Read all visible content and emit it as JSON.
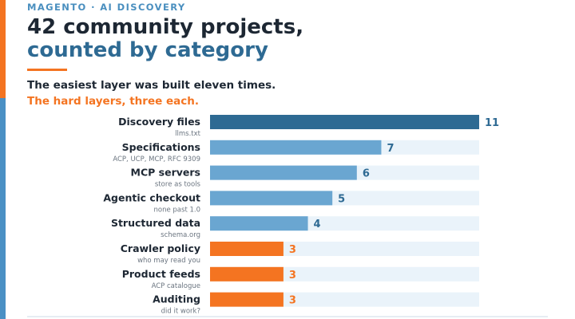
{
  "header": {
    "kicker": "MAGENTO · AI DISCOVERY",
    "title_line1": "42 community projects,",
    "title_line2": "counted by category",
    "subtitle_line1": "The easiest layer was built eleven times.",
    "subtitle_line2": "The hard layers, three each."
  },
  "colors": {
    "dark_blue": "#2e6a93",
    "light_blue": "#6aa6d1",
    "orange": "#f47421",
    "track": "#eaf3fa"
  },
  "chart_data": {
    "type": "bar",
    "orientation": "horizontal",
    "xlim": [
      0,
      11
    ],
    "categories": [
      "Discovery files",
      "Specifications",
      "MCP servers",
      "Agentic checkout",
      "Structured data",
      "Crawler policy",
      "Product feeds",
      "Auditing"
    ],
    "sublabels": [
      "llms.txt",
      "ACP, UCP, MCP, RFC 9309",
      "store as tools",
      "none past 1.0",
      "schema.org",
      "who may read you",
      "ACP catalogue",
      "did it work?"
    ],
    "values": [
      11,
      7,
      6,
      5,
      4,
      3,
      3,
      3
    ],
    "value_labels": [
      "11",
      "7",
      "6",
      "5",
      "4",
      "3",
      "3",
      "3"
    ],
    "bar_colors": [
      "#2e6a93",
      "#6aa6d1",
      "#6aa6d1",
      "#6aa6d1",
      "#6aa6d1",
      "#f47421",
      "#f47421",
      "#f47421"
    ],
    "value_label_colors": [
      "#2e6a93",
      "#2e6a93",
      "#2e6a93",
      "#2e6a93",
      "#2e6a93",
      "#f47421",
      "#f47421",
      "#f47421"
    ]
  }
}
